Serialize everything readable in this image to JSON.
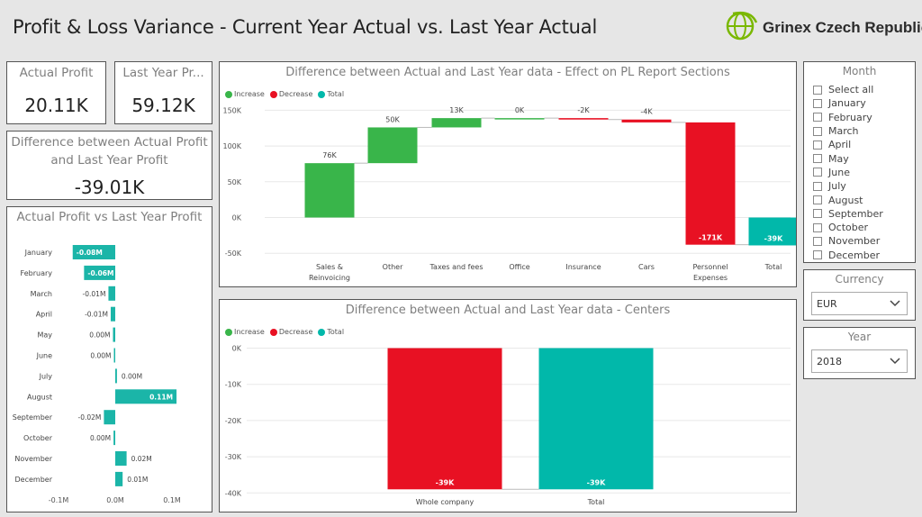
{
  "header": {
    "title": "Profit & Loss Variance - Current Year Actual vs. Last Year Actual"
  },
  "logo": {
    "text": "Grinex Czech Republic",
    "color": "#7ab800"
  },
  "kpis": {
    "actual_profit": {
      "label": "Actual Profit",
      "value": "20.11K"
    },
    "last_year_profit": {
      "label": "Last Year Pr...",
      "value": "59.12K"
    },
    "difference": {
      "label_line1": "Difference between Actual Profit",
      "label_line2": "and Last Year Profit",
      "value": "-39.01K"
    }
  },
  "colors": {
    "increase": "#39b54a",
    "decrease": "#e81123",
    "total": "#01b8aa",
    "bar_teal": "#1bb5a8"
  },
  "legend": {
    "increase": "Increase",
    "decrease": "Decrease",
    "total": "Total"
  },
  "month_slicer": {
    "title": "Month",
    "items": [
      "Select all",
      "January",
      "February",
      "March",
      "April",
      "May",
      "June",
      "July",
      "August",
      "September",
      "October",
      "November",
      "December"
    ]
  },
  "currency_slicer": {
    "title": "Currency",
    "value": "EUR"
  },
  "year_slicer": {
    "title": "Year",
    "value": "2018"
  },
  "chart_data": [
    {
      "type": "bar",
      "orientation": "horizontal",
      "title": "Actual Profit vs Last Year Profit",
      "categories": [
        "January",
        "February",
        "March",
        "April",
        "May",
        "June",
        "July",
        "August",
        "September",
        "October",
        "November",
        "December"
      ],
      "values": [
        -0.08,
        -0.06,
        -0.01,
        -0.01,
        0.0,
        0.0,
        0.0,
        0.11,
        -0.02,
        0.0,
        0.02,
        0.01
      ],
      "value_approx": [
        -0.075,
        -0.055,
        -0.012,
        -0.008,
        -0.004,
        -0.002,
        0.003,
        0.108,
        -0.02,
        -0.003,
        0.02,
        0.013
      ],
      "labels": [
        "-0.08M",
        "-0.06M",
        "-0.01M",
        "-0.01M",
        "0.00M",
        "0.00M",
        "0.00M",
        "0.11M",
        "-0.02M",
        "0.00M",
        "0.02M",
        "0.01M"
      ],
      "xticks": [
        "-0.1M",
        "0.0M",
        "0.1M"
      ],
      "xlim": [
        -0.1,
        0.1
      ]
    },
    {
      "type": "waterfall",
      "title": "Difference between Actual and Last Year data - Effect on PL Report Sections",
      "categories": [
        "Sales & Reinvoicing",
        "Other",
        "Taxes and fees",
        "Office",
        "Insurance",
        "Cars",
        "Personnel Expenses",
        "Total"
      ],
      "category_lines": [
        [
          "Sales &",
          "Reinvoicing"
        ],
        [
          "Other"
        ],
        [
          "Taxes and fees"
        ],
        [
          "Office"
        ],
        [
          "Insurance"
        ],
        [
          "Cars"
        ],
        [
          "Personnel",
          "Expenses"
        ],
        [
          "Total"
        ]
      ],
      "values": [
        76,
        50,
        13,
        0,
        -2,
        -4,
        -171,
        -39
      ],
      "labels": [
        "76K",
        "50K",
        "13K",
        "0K",
        "-2K",
        "-4K",
        "-171K",
        "-39K"
      ],
      "yticks": [
        "150K",
        "100K",
        "50K",
        "0K",
        "-50K"
      ],
      "ylim": [
        -50,
        150
      ]
    },
    {
      "type": "waterfall",
      "title": "Difference between Actual and Last Year data - Centers",
      "categories": [
        "Whole company",
        "Total"
      ],
      "values": [
        -39,
        -39
      ],
      "labels": [
        "-39K",
        "-39K"
      ],
      "yticks": [
        "0K",
        "-10K",
        "-20K",
        "-30K",
        "-40K"
      ],
      "ylim": [
        -40,
        0
      ]
    }
  ]
}
